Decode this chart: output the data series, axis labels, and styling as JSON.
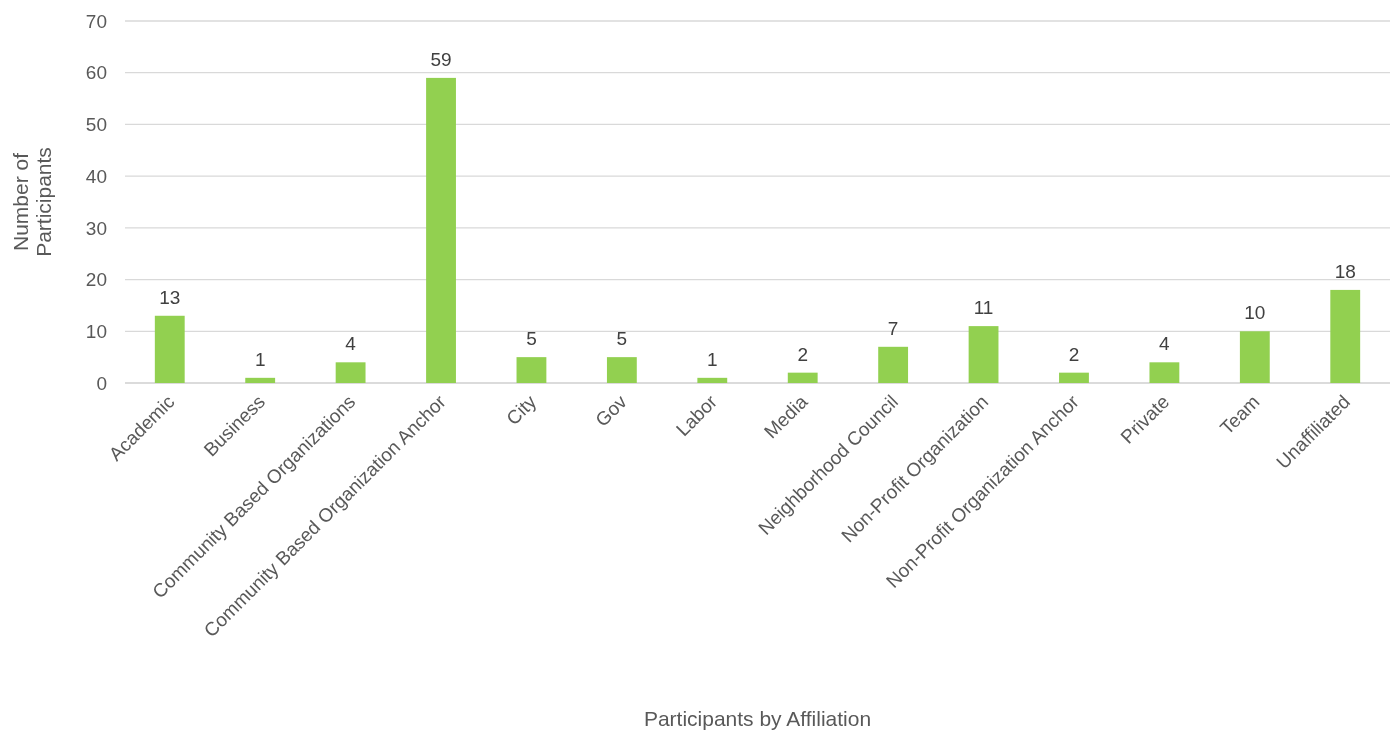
{
  "chart_data": {
    "type": "bar",
    "xlabel": "Participants by Affiliation",
    "ylabel": "Number of Participants",
    "categories": [
      "Academic",
      "Business",
      "Community Based Organizations",
      "Community Based Organization Anchor",
      "City",
      "Gov",
      "Labor",
      "Media",
      "Neighborhood Council",
      "Non-Profit Organization",
      "Non-Profit Organization Anchor",
      "Private",
      "Team",
      "Unaffiliated"
    ],
    "values": [
      13,
      1,
      4,
      59,
      5,
      5,
      1,
      2,
      7,
      11,
      2,
      4,
      10,
      18
    ],
    "color": "#92d050",
    "ylim": [
      0,
      70
    ],
    "yticks": [
      0,
      10,
      20,
      30,
      40,
      50,
      60,
      70
    ],
    "grid": "y",
    "data_labels": true
  }
}
